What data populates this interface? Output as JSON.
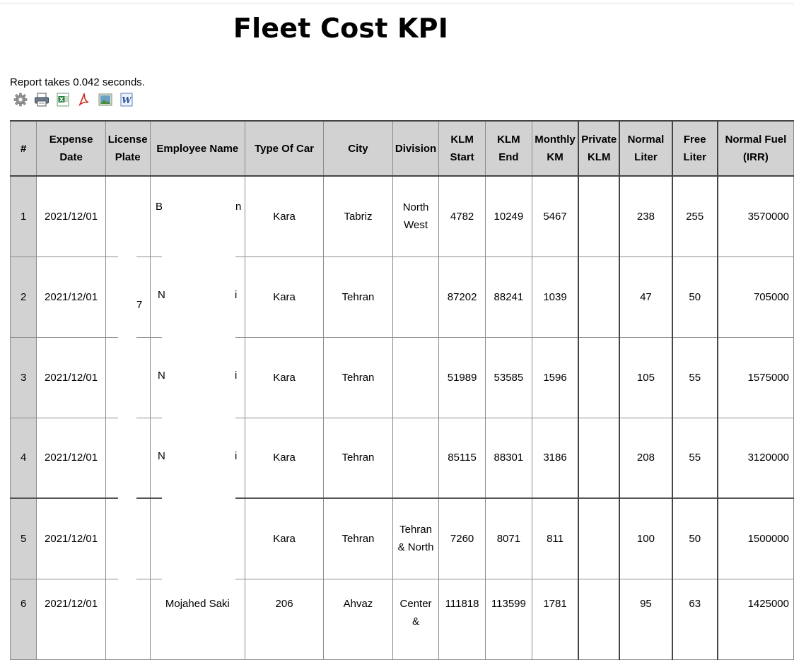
{
  "report": {
    "title": "Fleet Cost KPI",
    "timing": "Report takes 0.042 seconds."
  },
  "toolbar": [
    {
      "icon": "gear-icon"
    },
    {
      "icon": "printer-icon"
    },
    {
      "icon": "excel-icon"
    },
    {
      "icon": "pdf-icon"
    },
    {
      "icon": "image-icon"
    },
    {
      "icon": "word-icon"
    }
  ],
  "table": {
    "headers": [
      "#",
      "Expense Date",
      "License Plate",
      "Employee Name",
      "Type Of Car",
      "City",
      "Division",
      "KLM Start",
      "KLM End",
      "Monthly KM",
      "Private KLM",
      "Normal Liter",
      "Free Liter",
      "Normal Fuel (IRR)"
    ],
    "rows": [
      {
        "no": "1",
        "date": "2021/12/01",
        "plate": "",
        "employee": "",
        "car": "Kara",
        "city": "Tabriz",
        "division": "North West",
        "klm_start": "4782",
        "klm_end": "10249",
        "monthly": "5467",
        "private": "",
        "normal_liter": "238",
        "free_liter": "255",
        "normal_fuel": "3570000"
      },
      {
        "no": "2",
        "date": "2021/12/01",
        "plate": "",
        "employee": "",
        "car": "Kara",
        "city": "Tehran",
        "division": "",
        "klm_start": "87202",
        "klm_end": "88241",
        "monthly": "1039",
        "private": "",
        "normal_liter": "47",
        "free_liter": "50",
        "normal_fuel": "705000"
      },
      {
        "no": "3",
        "date": "2021/12/01",
        "plate": "",
        "employee": "",
        "car": "Kara",
        "city": "Tehran",
        "division": "",
        "klm_start": "51989",
        "klm_end": "53585",
        "monthly": "1596",
        "private": "",
        "normal_liter": "105",
        "free_liter": "55",
        "normal_fuel": "1575000"
      },
      {
        "no": "4",
        "date": "2021/12/01",
        "plate": "",
        "employee": "",
        "car": "Kara",
        "city": "Tehran",
        "division": "",
        "klm_start": "85115",
        "klm_end": "88301",
        "monthly": "3186",
        "private": "",
        "normal_liter": "208",
        "free_liter": "55",
        "normal_fuel": "3120000"
      },
      {
        "no": "5",
        "date": "2021/12/01",
        "plate": "",
        "employee": "",
        "car": "Kara",
        "city": "Tehran",
        "division": "Tehran & North",
        "klm_start": "7260",
        "klm_end": "8071",
        "monthly": "811",
        "private": "",
        "normal_liter": "100",
        "free_liter": "50",
        "normal_fuel": "1500000"
      },
      {
        "no": "6",
        "date": "2021/12/01",
        "plate": "",
        "employee": "Mojahed Saki",
        "car": "206",
        "city": "Ahvaz",
        "division": "Center &",
        "klm_start": "111818",
        "klm_end": "113599",
        "monthly": "1781",
        "private": "",
        "normal_liter": "95",
        "free_liter": "63",
        "normal_fuel": "1425000"
      }
    ]
  },
  "fragments": {
    "r1_emp_a": "B",
    "r1_emp_b": "n",
    "r2_emp_a": "N",
    "r2_emp_b": "i",
    "r3_emp_a": "N",
    "r3_emp_b": "i",
    "r4_emp_a": "N",
    "r4_emp_b": "i",
    "r2_plate": "7"
  }
}
